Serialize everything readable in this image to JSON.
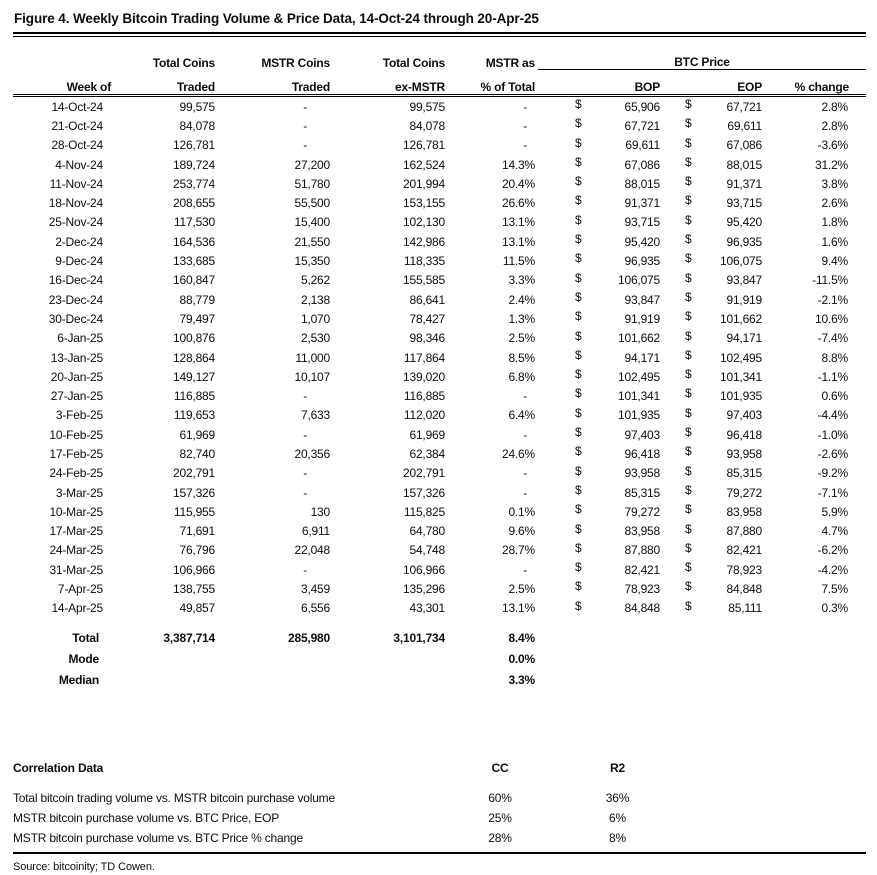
{
  "title": "Figure 4. Weekly Bitcoin Trading Volume & Price Data, 14-Oct-24 through 20-Apr-25",
  "currency": "$",
  "table": {
    "headers": {
      "week": "Week of",
      "total_coins": [
        "Total Coins",
        "Traded"
      ],
      "mstr_coins": [
        "MSTR Coins",
        "Traded"
      ],
      "ex_mstr": [
        "Total Coins",
        "ex-MSTR"
      ],
      "mstr_pct": [
        "MSTR as",
        "% of Total"
      ],
      "btc_group": "BTC Price",
      "bop": "BOP",
      "eop": "EOP",
      "pct_change": "% change"
    },
    "rows": [
      [
        "14-Oct-24",
        "99,575",
        "-",
        "99,575",
        "-",
        "65,906",
        "67,721",
        "2.8%"
      ],
      [
        "21-Oct-24",
        "84,078",
        "-",
        "84,078",
        "-",
        "67,721",
        "69,611",
        "2.8%"
      ],
      [
        "28-Oct-24",
        "126,781",
        "-",
        "126,781",
        "-",
        "69,611",
        "67,086",
        "-3.6%"
      ],
      [
        "4-Nov-24",
        "189,724",
        "27,200",
        "162,524",
        "14.3%",
        "67,086",
        "88,015",
        "31.2%"
      ],
      [
        "11-Nov-24",
        "253,774",
        "51,780",
        "201,994",
        "20.4%",
        "88,015",
        "91,371",
        "3.8%"
      ],
      [
        "18-Nov-24",
        "208,655",
        "55,500",
        "153,155",
        "26.6%",
        "91,371",
        "93,715",
        "2.6%"
      ],
      [
        "25-Nov-24",
        "117,530",
        "15,400",
        "102,130",
        "13.1%",
        "93,715",
        "95,420",
        "1.8%"
      ],
      [
        "2-Dec-24",
        "164,536",
        "21,550",
        "142,986",
        "13.1%",
        "95,420",
        "96,935",
        "1.6%"
      ],
      [
        "9-Dec-24",
        "133,685",
        "15,350",
        "118,335",
        "11.5%",
        "96,935",
        "106,075",
        "9.4%"
      ],
      [
        "16-Dec-24",
        "160,847",
        "5,262",
        "155,585",
        "3.3%",
        "106,075",
        "93,847",
        "-11.5%"
      ],
      [
        "23-Dec-24",
        "88,779",
        "2,138",
        "86,641",
        "2.4%",
        "93,847",
        "91,919",
        "-2.1%"
      ],
      [
        "30-Dec-24",
        "79,497",
        "1,070",
        "78,427",
        "1.3%",
        "91,919",
        "101,662",
        "10.6%"
      ],
      [
        "6-Jan-25",
        "100,876",
        "2,530",
        "98,346",
        "2.5%",
        "101,662",
        "94,171",
        "-7.4%"
      ],
      [
        "13-Jan-25",
        "128,864",
        "11,000",
        "117,864",
        "8.5%",
        "94,171",
        "102,495",
        "8.8%"
      ],
      [
        "20-Jan-25",
        "149,127",
        "10,107",
        "139,020",
        "6.8%",
        "102,495",
        "101,341",
        "-1.1%"
      ],
      [
        "27-Jan-25",
        "116,885",
        "-",
        "116,885",
        "-",
        "101,341",
        "101,935",
        "0.6%"
      ],
      [
        "3-Feb-25",
        "119,653",
        "7,633",
        "112,020",
        "6.4%",
        "101,935",
        "97,403",
        "-4.4%"
      ],
      [
        "10-Feb-25",
        "61,969",
        "-",
        "61,969",
        "-",
        "97,403",
        "96,418",
        "-1.0%"
      ],
      [
        "17-Feb-25",
        "82,740",
        "20,356",
        "62,384",
        "24.6%",
        "96,418",
        "93,958",
        "-2.6%"
      ],
      [
        "24-Feb-25",
        "202,791",
        "-",
        "202,791",
        "-",
        "93,958",
        "85,315",
        "-9.2%"
      ],
      [
        "3-Mar-25",
        "157,326",
        "-",
        "157,326",
        "-",
        "85,315",
        "79,272",
        "-7.1%"
      ],
      [
        "10-Mar-25",
        "115,955",
        "130",
        "115,825",
        "0.1%",
        "79,272",
        "83,958",
        "5.9%"
      ],
      [
        "17-Mar-25",
        "71,691",
        "6,911",
        "64,780",
        "9.6%",
        "83,958",
        "87,880",
        "4.7%"
      ],
      [
        "24-Mar-25",
        "76,796",
        "22,048",
        "54,748",
        "28.7%",
        "87,880",
        "82,421",
        "-6.2%"
      ],
      [
        "31-Mar-25",
        "106,966",
        "-",
        "106,966",
        "-",
        "82,421",
        "78,923",
        "-4.2%"
      ],
      [
        "7-Apr-25",
        "138,755",
        "3,459",
        "135,296",
        "2.5%",
        "78,923",
        "84,848",
        "7.5%"
      ],
      [
        "14-Apr-25",
        "49,857",
        "6,556",
        "43,301",
        "13.1%",
        "84,848",
        "85,111",
        "0.3%"
      ]
    ],
    "summary": [
      [
        "Total",
        "3,387,714",
        "285,980",
        "3,101,734",
        "8.4%"
      ],
      [
        "Mode",
        "",
        "",
        "",
        "0.0%"
      ],
      [
        "Median",
        "",
        "",
        "",
        "3.3%"
      ]
    ]
  },
  "correlation": {
    "title": "Correlation Data",
    "cc_header": "CC",
    "r2_header": "R2",
    "rows": [
      [
        "Total bitcoin trading volume vs. MSTR bitcoin purchase volume",
        "60%",
        "36%"
      ],
      [
        "MSTR bitcoin purchase volume vs. BTC Price, EOP",
        "25%",
        "6%"
      ],
      [
        "MSTR bitcoin purchase volume vs. BTC Price % change",
        "28%",
        "8%"
      ]
    ]
  },
  "source": "Source: bitcoinity; TD Cowen."
}
